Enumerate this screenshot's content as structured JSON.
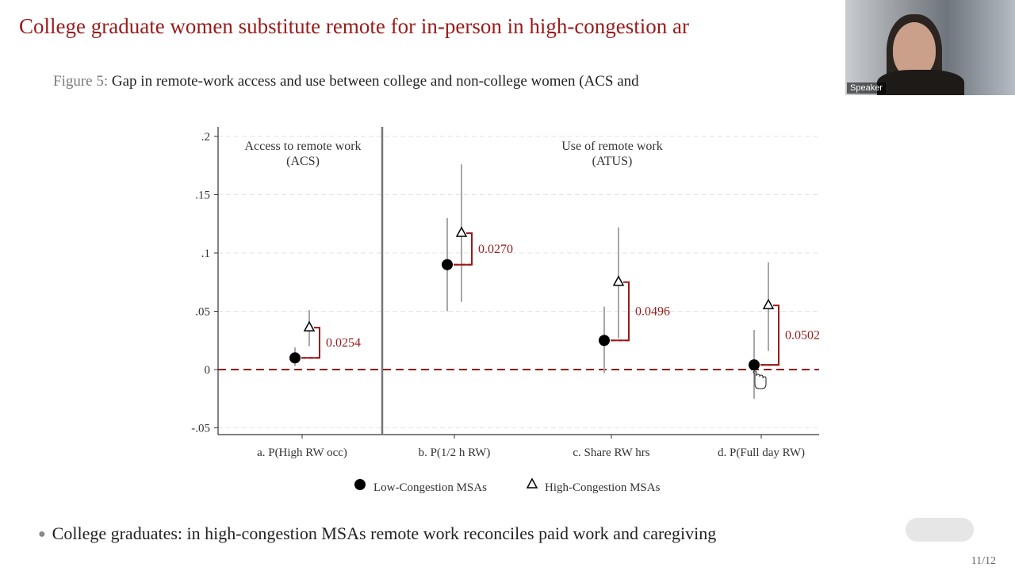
{
  "slide": {
    "title": "College graduate women substitute remote for in-person in high-congestion ar",
    "figure_label": "Figure 5:",
    "figure_caption": "Gap in remote-work access and use between college and non-college women (ACS and",
    "bullet": "College graduates: in high-congestion MSAs remote work reconciles paid work and caregiving",
    "page_number": "11/12"
  },
  "webcam": {
    "speaker_label": "Speaker"
  },
  "chart_data": {
    "type": "scatter",
    "panels": [
      {
        "label_line1": "Access to remote work",
        "label_line2": "(ACS)"
      },
      {
        "label_line1": "Use of remote work",
        "label_line2": "(ATUS)"
      }
    ],
    "categories": [
      "a. P(High RW occ)",
      "b. P(1/2 h RW)",
      "c. Share RW hrs",
      "d. P(Full day RW)"
    ],
    "yticks": [
      ".2",
      ".15",
      ".1",
      ".05",
      "0",
      "-.05"
    ],
    "ytick_values": [
      0.2,
      0.15,
      0.1,
      0.05,
      0,
      -0.05
    ],
    "ylim": [
      -0.055,
      0.208
    ],
    "series": [
      {
        "name": "Low-Congestion MSAs",
        "marker": "circle",
        "values": [
          0.01,
          0.09,
          0.025,
          0.004
        ],
        "ci_low": [
          0.003,
          0.05,
          -0.003,
          -0.025
        ],
        "ci_high": [
          0.019,
          0.13,
          0.054,
          0.034
        ]
      },
      {
        "name": "High-Congestion MSAs",
        "marker": "triangle",
        "values": [
          0.036,
          0.117,
          0.075,
          0.055
        ],
        "ci_low": [
          0.02,
          0.058,
          0.027,
          0.016
        ],
        "ci_high": [
          0.051,
          0.176,
          0.122,
          0.092
        ]
      }
    ],
    "gap_labels": [
      "0.0254",
      "0.0270",
      "0.0496",
      "0.0502"
    ],
    "reference_line": {
      "y": 0,
      "style": "dashed"
    },
    "colors": {
      "accent": "#9a1b1b",
      "ci": "#a8a8a8",
      "marker": "#000000",
      "grid": "#e3e3e3"
    },
    "legend_position": "bottom"
  }
}
